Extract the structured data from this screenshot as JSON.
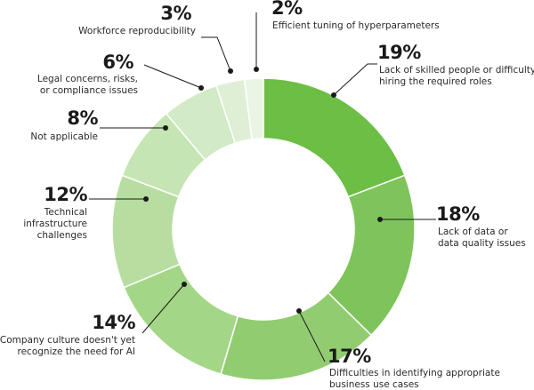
{
  "chart_data": {
    "type": "pie",
    "donut": true,
    "slices": [
      {
        "value": 19,
        "percent_label": "19%",
        "label_lines": [
          "Lack of skilled people or difficulty",
          "hiring the required roles"
        ],
        "color": "#6cbe45"
      },
      {
        "value": 18,
        "percent_label": "18%",
        "label_lines": [
          "Lack of data or",
          "data quality issues"
        ],
        "color": "#7ec45a"
      },
      {
        "value": 17,
        "percent_label": "17%",
        "label_lines": [
          "Difficulties in identifying appropriate",
          "business use cases"
        ],
        "color": "#91cd70"
      },
      {
        "value": 14,
        "percent_label": "14%",
        "label_lines": [
          "Company culture doesn't yet",
          "recognize the need for AI"
        ],
        "color": "#a4d688"
      },
      {
        "value": 12,
        "percent_label": "12%",
        "label_lines": [
          "Technical",
          "infrastructure",
          "challenges"
        ],
        "color": "#b7dea0"
      },
      {
        "value": 8,
        "percent_label": "8%",
        "label_lines": [
          "Not applicable"
        ],
        "color": "#c6e5b5"
      },
      {
        "value": 6,
        "percent_label": "6%",
        "label_lines": [
          "Legal concerns, risks,",
          "or compliance issues"
        ],
        "color": "#d2eac5"
      },
      {
        "value": 3,
        "percent_label": "3%",
        "label_lines": [
          "Workforce reproducibility"
        ],
        "color": "#dfefd6"
      },
      {
        "value": 2,
        "percent_label": "2%",
        "label_lines": [
          "Efficient tuning of hyperparameters"
        ],
        "color": "#ebf5e5"
      }
    ]
  }
}
